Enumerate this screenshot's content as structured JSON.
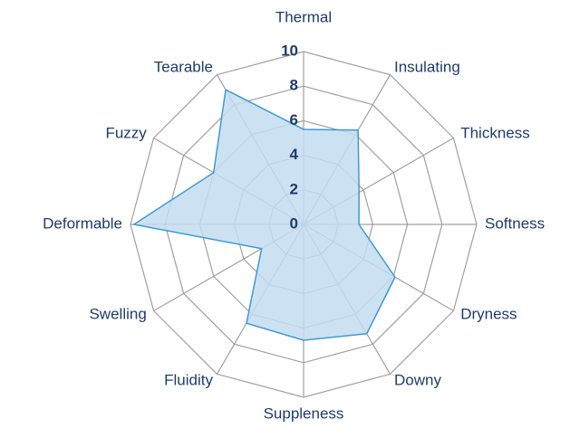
{
  "chart_data": {
    "type": "radar",
    "categories": [
      "Thermal",
      "Insulating",
      "Thickness",
      "Softness",
      "Dryness",
      "Downy",
      "Suppleness",
      "Fluidity",
      "Swelling",
      "Deformable",
      "Fuzzy",
      "Tearable"
    ],
    "values": [
      5.5,
      6.3,
      3.7,
      3.2,
      6.1,
      7.3,
      6.7,
      6.6,
      2.8,
      9.8,
      6.0,
      9.0
    ],
    "color": "#c3ddf0",
    "line_color": "#3d9ad8",
    "rlim": [
      0,
      10
    ],
    "rticks": [
      0,
      2,
      4,
      6,
      8,
      10
    ],
    "grid": true
  }
}
